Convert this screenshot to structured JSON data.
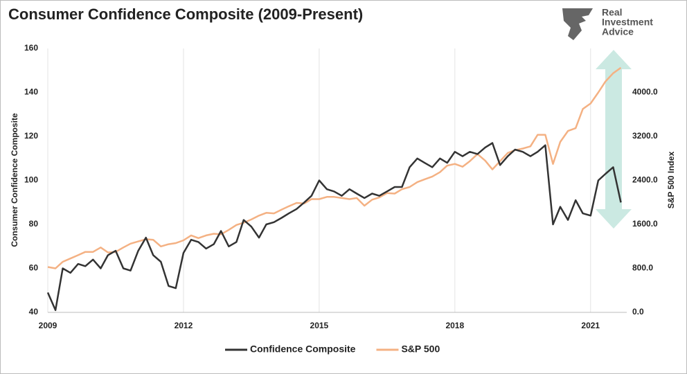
{
  "chart_data": {
    "type": "line",
    "title": "Consumer Confidence Composite (2009-Present)",
    "brand": [
      "Real",
      "Investment",
      "Advice"
    ],
    "ylabel": "Consumer Confidence Composite",
    "y2label": "S&P 500 Index",
    "xlim": [
      2009,
      2021.8
    ],
    "xticks": [
      2009,
      2012,
      2015,
      2018,
      2021
    ],
    "ylim": [
      40,
      160
    ],
    "yticks": [
      40,
      60,
      80,
      100,
      120,
      140,
      160
    ],
    "y2lim": [
      0,
      4800
    ],
    "y2ticks": [
      {
        "value": 0,
        "label": "0.0"
      },
      {
        "value": 800,
        "label": "800.0"
      },
      {
        "value": 1600,
        "label": "1600.0"
      },
      {
        "value": 2400,
        "label": "2400.0"
      },
      {
        "value": 3200,
        "label": "3200.0"
      },
      {
        "value": 4000,
        "label": "4000.0"
      }
    ],
    "grid": true,
    "legend": "bottom",
    "x": [
      2009,
      2009.17,
      2009.33,
      2009.5,
      2009.67,
      2009.83,
      2010,
      2010.17,
      2010.33,
      2010.5,
      2010.67,
      2010.83,
      2011,
      2011.17,
      2011.33,
      2011.5,
      2011.67,
      2011.83,
      2012,
      2012.17,
      2012.33,
      2012.5,
      2012.67,
      2012.83,
      2013,
      2013.17,
      2013.33,
      2013.5,
      2013.67,
      2013.83,
      2014,
      2014.17,
      2014.33,
      2014.5,
      2014.67,
      2014.83,
      2015,
      2015.17,
      2015.33,
      2015.5,
      2015.67,
      2015.83,
      2016,
      2016.17,
      2016.33,
      2016.5,
      2016.67,
      2016.83,
      2017,
      2017.17,
      2017.33,
      2017.5,
      2017.67,
      2017.83,
      2018,
      2018.17,
      2018.33,
      2018.5,
      2018.67,
      2018.83,
      2019,
      2019.17,
      2019.33,
      2019.5,
      2019.67,
      2019.83,
      2020,
      2020.17,
      2020.33,
      2020.5,
      2020.67,
      2020.83,
      2021,
      2021.17,
      2021.33,
      2021.5,
      2021.67
    ],
    "series": [
      {
        "name": "Confidence Composite",
        "color": "#333333",
        "axis": "y",
        "values": [
          49,
          41,
          60,
          58,
          62,
          61,
          64,
          60,
          66,
          68,
          60,
          59,
          68,
          74,
          66,
          63,
          52,
          51,
          67,
          73,
          72,
          69,
          71,
          77,
          70,
          72,
          82,
          79,
          74,
          80,
          81,
          83,
          85,
          87,
          90,
          93,
          100,
          96,
          95,
          93,
          96,
          94,
          92,
          94,
          93,
          95,
          97,
          97,
          106,
          110,
          108,
          106,
          110,
          108,
          113,
          111,
          113,
          112,
          115,
          117,
          107,
          111,
          114,
          113,
          111,
          113,
          116,
          80,
          88,
          82,
          91,
          85,
          84,
          100,
          103,
          106,
          90
        ]
      },
      {
        "name": "S&P 500",
        "color": "#f4b183",
        "axis": "y2",
        "values": [
          825,
          800,
          920,
          980,
          1040,
          1100,
          1100,
          1180,
          1090,
          1100,
          1180,
          1250,
          1290,
          1330,
          1320,
          1200,
          1240,
          1260,
          1310,
          1400,
          1350,
          1400,
          1430,
          1420,
          1500,
          1590,
          1630,
          1690,
          1760,
          1810,
          1800,
          1870,
          1930,
          1990,
          1980,
          2060,
          2060,
          2100,
          2100,
          2080,
          2060,
          2080,
          1940,
          2050,
          2090,
          2170,
          2160,
          2240,
          2280,
          2370,
          2420,
          2470,
          2550,
          2670,
          2700,
          2650,
          2750,
          2880,
          2760,
          2600,
          2750,
          2900,
          2950,
          2980,
          3020,
          3230,
          3230,
          2700,
          3100,
          3300,
          3350,
          3700,
          3800,
          4000,
          4200,
          4350,
          4450
        ]
      }
    ]
  }
}
